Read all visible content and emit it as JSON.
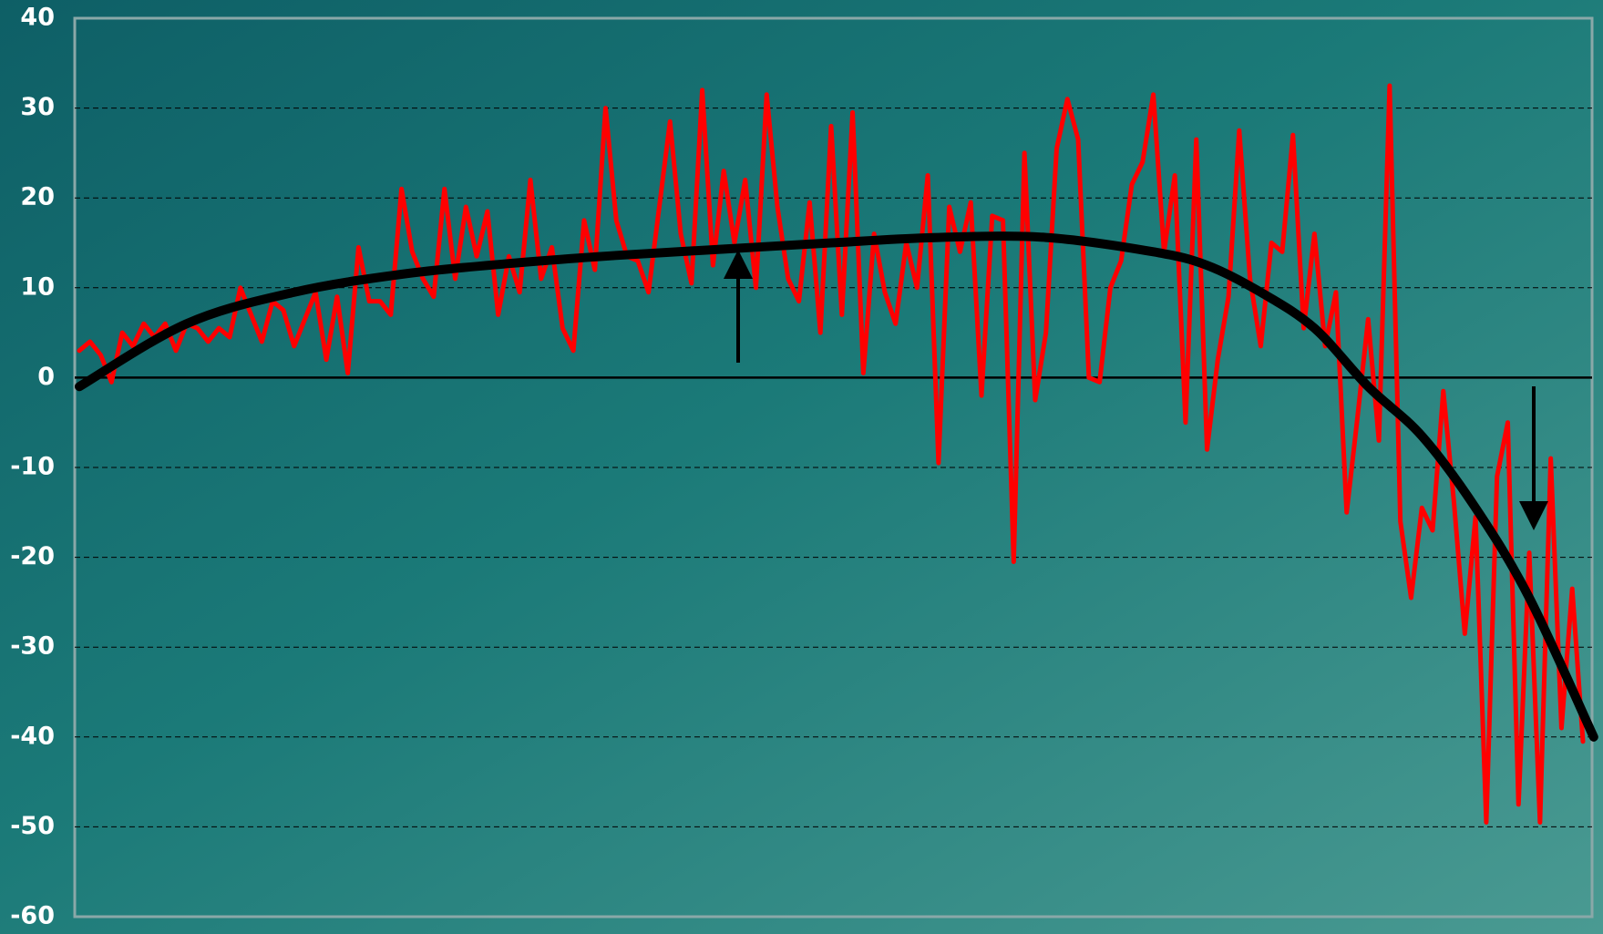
{
  "chart_data": {
    "type": "line",
    "ylim": [
      -60,
      40
    ],
    "yticks": [
      -60,
      -50,
      -40,
      -30,
      -20,
      -10,
      0,
      10,
      20,
      30,
      40
    ],
    "grid": true,
    "series": [
      {
        "color": "#ff0000",
        "values": [
          3,
          4,
          2.5,
          -0.5,
          5,
          3.5,
          6,
          4.5,
          6,
          3,
          6,
          5.5,
          4,
          5.5,
          4.5,
          10,
          7,
          4,
          8.5,
          7.5,
          3.5,
          6.5,
          9.5,
          2,
          9,
          0.5,
          14.5,
          8.5,
          8.5,
          7,
          21,
          14,
          11,
          9,
          21,
          11,
          19,
          13.5,
          18.5,
          7,
          13.5,
          9.5,
          22,
          11,
          14.5,
          5.5,
          3,
          17.5,
          12,
          30,
          17.5,
          13.5,
          13,
          9.5,
          19,
          28.5,
          16,
          10.5,
          32,
          12.5,
          23,
          15,
          22,
          10,
          31.5,
          19,
          11,
          8.5,
          19.5,
          5,
          28,
          7,
          29.5,
          0.5,
          16,
          9.5,
          6,
          15,
          10,
          22.5,
          -9.5,
          19,
          14,
          19.5,
          -2,
          18,
          17.5,
          -20.5,
          25,
          -2.5,
          5,
          25.5,
          31,
          26.5,
          0,
          -0.5,
          10,
          13,
          21.5,
          24,
          31.5,
          14,
          22.5,
          -5,
          26.5,
          -8,
          2,
          9,
          27.5,
          11,
          3.5,
          15,
          14,
          27,
          5.5,
          16,
          3.5,
          9.5,
          -15,
          -4.5,
          6.5,
          -7,
          32.5,
          -16,
          -24.5,
          -14.5,
          -17,
          -1.5,
          -14,
          -28.5,
          -15.5,
          -49.5,
          -11,
          -5,
          -47.5,
          -19.5,
          -49.5,
          -9,
          -39,
          -23.5,
          -40.5
        ]
      },
      {
        "color": "#000000",
        "x": [
          0,
          10,
          20,
          30,
          40,
          50,
          60,
          70,
          80,
          90,
          100,
          105,
          110,
          115,
          120,
          125,
          130,
          135,
          141
        ],
        "values": [
          -1,
          6,
          9.5,
          11.5,
          12.7,
          13.6,
          14.3,
          15,
          15.6,
          15.6,
          14,
          12.5,
          9.5,
          5.5,
          -1,
          -6.5,
          -14.5,
          -24.5,
          -40
        ]
      }
    ]
  }
}
